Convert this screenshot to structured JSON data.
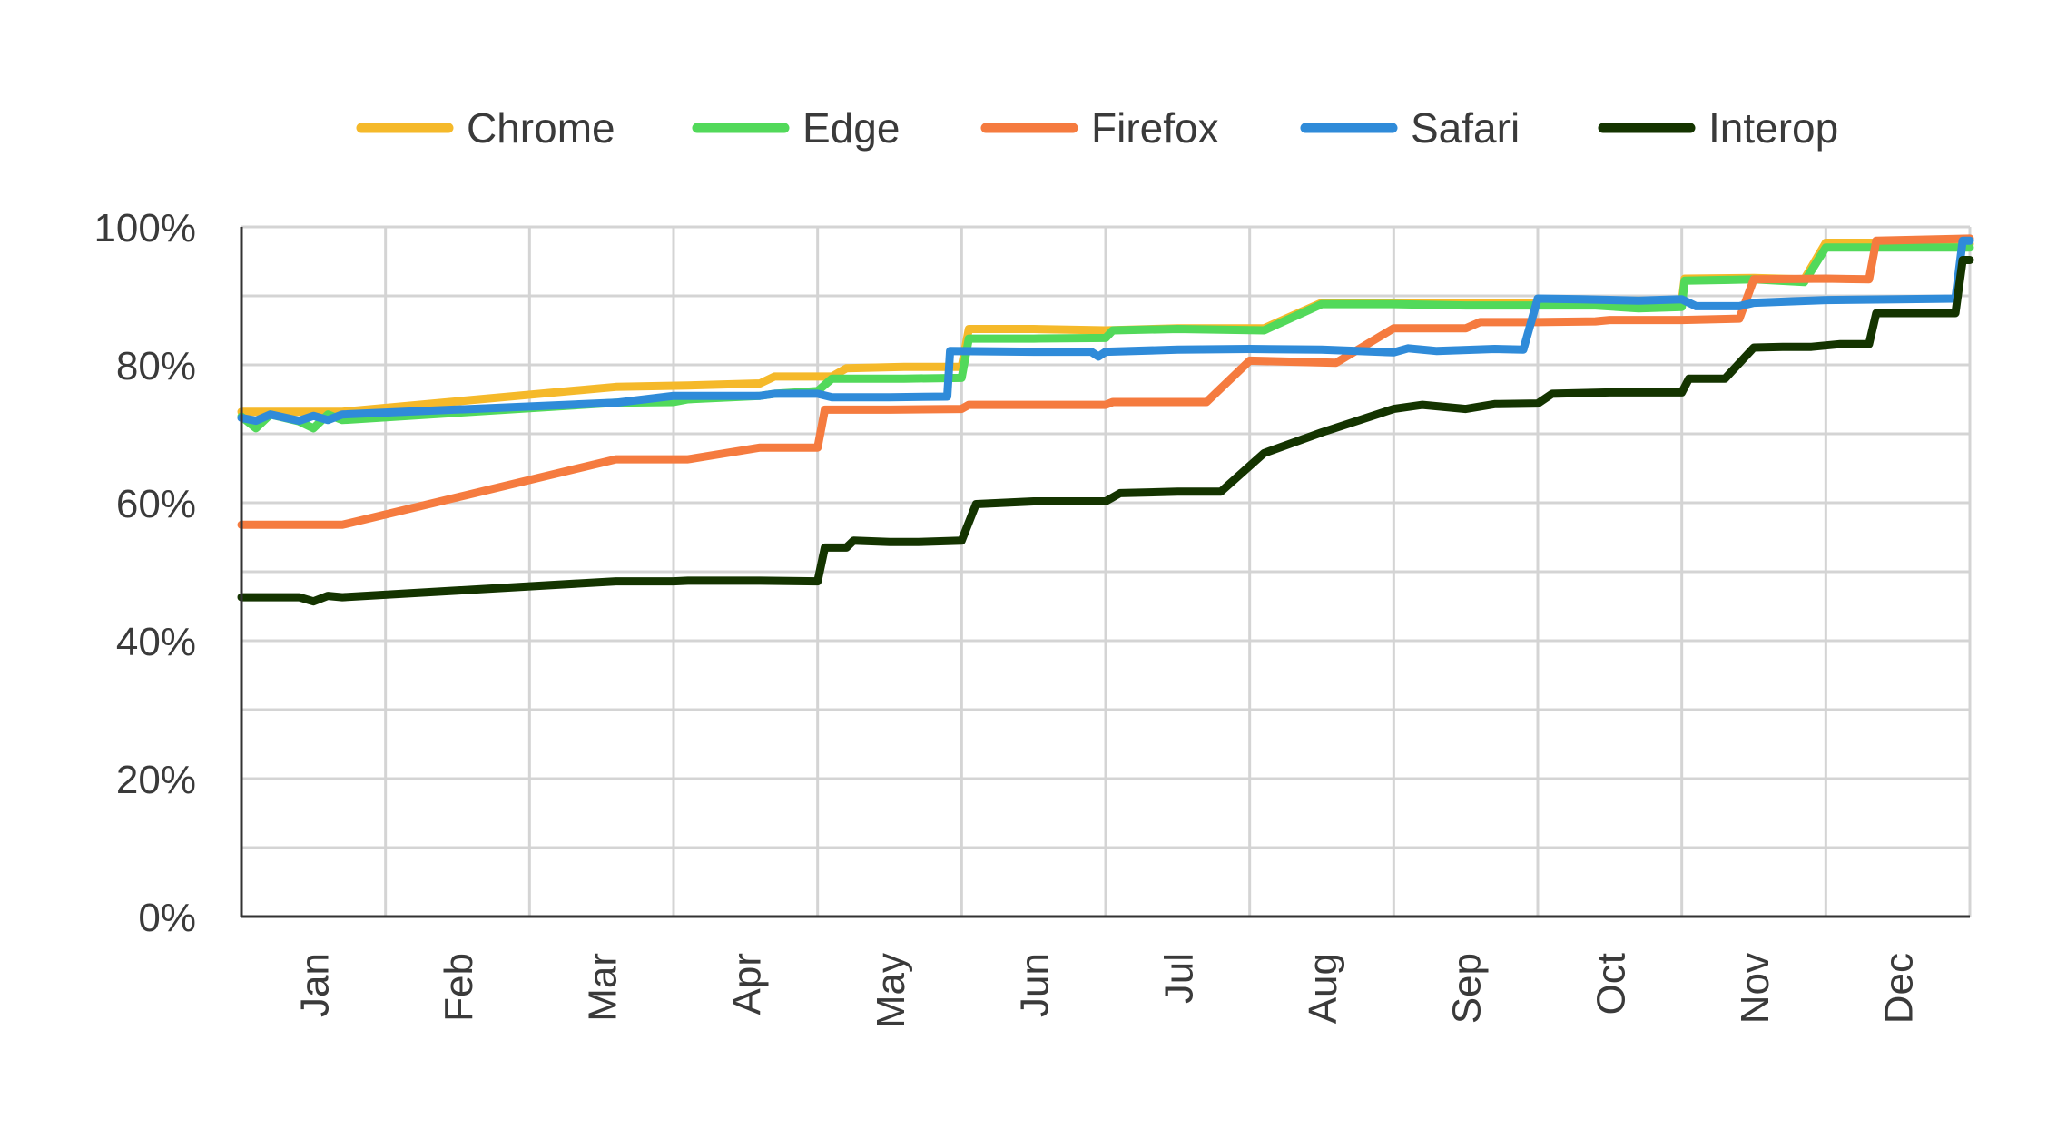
{
  "chart_data": {
    "type": "line",
    "title": "",
    "xlabel": "",
    "ylabel": "",
    "x_tick_labels": [
      "Jan",
      "Feb",
      "Mar",
      "Apr",
      "May",
      "Jun",
      "Jul",
      "Aug",
      "Sep",
      "Oct",
      "Nov",
      "Dec"
    ],
    "xlim": [
      0.5,
      12.5
    ],
    "y_tick_labels": [
      "0%",
      "20%",
      "40%",
      "60%",
      "80%",
      "100%"
    ],
    "ylim": [
      0,
      100
    ],
    "grid": true,
    "legend_position": "top",
    "series": [
      {
        "name": "Chrome",
        "color": "#F5B92A",
        "points": [
          [
            0.5,
            73.2
          ],
          [
            1.2,
            73.2
          ],
          [
            3.1,
            76.8
          ],
          [
            3.6,
            77.0
          ],
          [
            4.1,
            77.3
          ],
          [
            4.2,
            78.3
          ],
          [
            4.6,
            78.3
          ],
          [
            4.7,
            79.5
          ],
          [
            5.1,
            79.7
          ],
          [
            5.5,
            79.7
          ],
          [
            5.55,
            85.2
          ],
          [
            6.0,
            85.2
          ],
          [
            6.5,
            85.0
          ],
          [
            7.0,
            85.3
          ],
          [
            7.6,
            85.3
          ],
          [
            8.0,
            89.0
          ],
          [
            8.5,
            89.0
          ],
          [
            9.0,
            89.0
          ],
          [
            9.5,
            89.0
          ],
          [
            9.9,
            89.3
          ],
          [
            10.2,
            89.3
          ],
          [
            10.5,
            89.3
          ],
          [
            10.52,
            92.5
          ],
          [
            11.0,
            92.6
          ],
          [
            11.35,
            92.4
          ],
          [
            11.5,
            97.7
          ],
          [
            11.8,
            97.7
          ],
          [
            12.5,
            97.5
          ]
        ]
      },
      {
        "name": "Edge",
        "color": "#52D95A",
        "points": [
          [
            0.5,
            72.5
          ],
          [
            0.6,
            70.8
          ],
          [
            0.7,
            72.8
          ],
          [
            0.9,
            71.8
          ],
          [
            1.0,
            70.8
          ],
          [
            1.1,
            72.8
          ],
          [
            1.2,
            72.0
          ],
          [
            3.1,
            74.5
          ],
          [
            3.5,
            74.6
          ],
          [
            3.6,
            75.0
          ],
          [
            4.1,
            75.5
          ],
          [
            4.2,
            75.8
          ],
          [
            4.5,
            76.2
          ],
          [
            4.6,
            78.0
          ],
          [
            5.1,
            78.0
          ],
          [
            5.5,
            78.1
          ],
          [
            5.55,
            83.8
          ],
          [
            6.0,
            83.8
          ],
          [
            6.5,
            83.9
          ],
          [
            6.55,
            85.0
          ],
          [
            7.0,
            85.2
          ],
          [
            7.6,
            85.0
          ],
          [
            8.0,
            88.8
          ],
          [
            8.5,
            88.8
          ],
          [
            9.0,
            88.6
          ],
          [
            9.5,
            88.6
          ],
          [
            9.9,
            88.6
          ],
          [
            10.2,
            88.2
          ],
          [
            10.5,
            88.4
          ],
          [
            10.52,
            92.2
          ],
          [
            11.0,
            92.4
          ],
          [
            11.35,
            92.0
          ],
          [
            11.5,
            97.0
          ],
          [
            11.8,
            97.0
          ],
          [
            12.5,
            97.0
          ]
        ]
      },
      {
        "name": "Firefox",
        "color": "#F57B3F",
        "points": [
          [
            0.5,
            56.8
          ],
          [
            1.2,
            56.8
          ],
          [
            3.1,
            66.3
          ],
          [
            3.6,
            66.3
          ],
          [
            4.1,
            68.0
          ],
          [
            4.5,
            68.0
          ],
          [
            4.55,
            73.5
          ],
          [
            5.0,
            73.5
          ],
          [
            5.5,
            73.6
          ],
          [
            5.55,
            74.2
          ],
          [
            6.0,
            74.2
          ],
          [
            6.5,
            74.2
          ],
          [
            6.55,
            74.6
          ],
          [
            7.2,
            74.6
          ],
          [
            7.5,
            80.6
          ],
          [
            7.9,
            80.4
          ],
          [
            8.1,
            80.3
          ],
          [
            8.5,
            85.3
          ],
          [
            9.0,
            85.3
          ],
          [
            9.1,
            86.2
          ],
          [
            9.5,
            86.2
          ],
          [
            9.9,
            86.3
          ],
          [
            10.0,
            86.5
          ],
          [
            10.5,
            86.5
          ],
          [
            10.9,
            86.7
          ],
          [
            11.0,
            92.4
          ],
          [
            11.5,
            92.5
          ],
          [
            11.8,
            92.4
          ],
          [
            11.85,
            98.0
          ],
          [
            12.5,
            98.3
          ]
        ]
      },
      {
        "name": "Safari",
        "color": "#2F8BD9",
        "points": [
          [
            0.5,
            72.3
          ],
          [
            0.6,
            71.9
          ],
          [
            0.7,
            72.8
          ],
          [
            0.9,
            71.9
          ],
          [
            1.0,
            72.6
          ],
          [
            1.1,
            72.0
          ],
          [
            1.2,
            72.8
          ],
          [
            3.1,
            74.5
          ],
          [
            3.5,
            75.5
          ],
          [
            4.1,
            75.5
          ],
          [
            4.2,
            75.8
          ],
          [
            4.5,
            75.8
          ],
          [
            4.6,
            75.3
          ],
          [
            5.0,
            75.3
          ],
          [
            5.4,
            75.4
          ],
          [
            5.42,
            82.0
          ],
          [
            6.0,
            81.9
          ],
          [
            6.4,
            81.9
          ],
          [
            6.45,
            81.2
          ],
          [
            6.5,
            81.9
          ],
          [
            7.0,
            82.2
          ],
          [
            7.5,
            82.3
          ],
          [
            8.0,
            82.2
          ],
          [
            8.5,
            81.8
          ],
          [
            8.6,
            82.4
          ],
          [
            8.8,
            82.0
          ],
          [
            9.2,
            82.3
          ],
          [
            9.4,
            82.2
          ],
          [
            9.5,
            89.6
          ],
          [
            9.8,
            89.5
          ],
          [
            10.2,
            89.3
          ],
          [
            10.5,
            89.5
          ],
          [
            10.6,
            88.5
          ],
          [
            10.9,
            88.5
          ],
          [
            11.0,
            89.0
          ],
          [
            11.5,
            89.4
          ],
          [
            12.0,
            89.5
          ],
          [
            12.4,
            89.6
          ],
          [
            12.45,
            98.0
          ],
          [
            12.5,
            98.0
          ]
        ]
      },
      {
        "name": "Interop",
        "color": "#143400",
        "points": [
          [
            0.5,
            46.3
          ],
          [
            0.9,
            46.3
          ],
          [
            1.0,
            45.7
          ],
          [
            1.1,
            46.5
          ],
          [
            1.2,
            46.3
          ],
          [
            3.1,
            48.6
          ],
          [
            3.5,
            48.6
          ],
          [
            3.6,
            48.7
          ],
          [
            4.1,
            48.7
          ],
          [
            4.5,
            48.6
          ],
          [
            4.55,
            53.5
          ],
          [
            4.7,
            53.5
          ],
          [
            4.75,
            54.5
          ],
          [
            5.0,
            54.3
          ],
          [
            5.2,
            54.3
          ],
          [
            5.5,
            54.5
          ],
          [
            5.6,
            59.8
          ],
          [
            6.0,
            60.2
          ],
          [
            6.5,
            60.2
          ],
          [
            6.6,
            61.4
          ],
          [
            7.0,
            61.6
          ],
          [
            7.3,
            61.6
          ],
          [
            7.6,
            67.2
          ],
          [
            8.0,
            70.2
          ],
          [
            8.5,
            73.6
          ],
          [
            8.7,
            74.2
          ],
          [
            9.0,
            73.6
          ],
          [
            9.2,
            74.3
          ],
          [
            9.5,
            74.4
          ],
          [
            9.6,
            75.8
          ],
          [
            10.0,
            76.0
          ],
          [
            10.3,
            76.0
          ],
          [
            10.5,
            76.0
          ],
          [
            10.55,
            78.0
          ],
          [
            10.8,
            78.0
          ],
          [
            11.0,
            82.5
          ],
          [
            11.2,
            82.6
          ],
          [
            11.4,
            82.6
          ],
          [
            11.6,
            83.0
          ],
          [
            11.8,
            83.0
          ],
          [
            11.85,
            87.5
          ],
          [
            12.0,
            87.5
          ],
          [
            12.4,
            87.5
          ],
          [
            12.45,
            95.2
          ],
          [
            12.5,
            95.2
          ]
        ]
      }
    ]
  }
}
